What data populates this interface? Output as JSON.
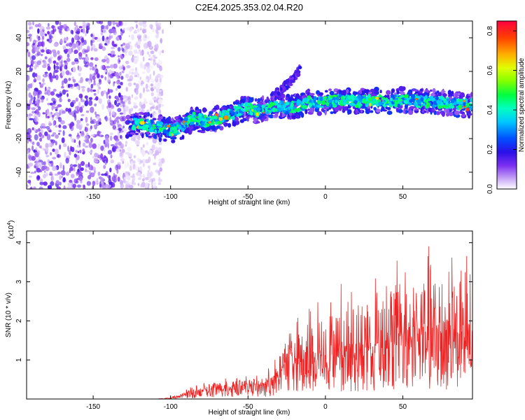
{
  "title": "C2E4.2025.353.02.04.R20",
  "chart_data": [
    {
      "id": "spectrogram",
      "type": "heatmap",
      "xlabel": "Height of straight line (km)",
      "ylabel": "Frequency (Hz)",
      "xlim": [
        -193,
        95
      ],
      "ylim": [
        -50,
        50
      ],
      "xticks": [
        -150,
        -100,
        -50,
        0,
        50
      ],
      "yticks": [
        -40,
        -20,
        0,
        20,
        40
      ],
      "grid": false,
      "trace": {
        "x": [
          -128,
          -120,
          -110,
          -100,
          -95,
          -90,
          -85,
          -80,
          -75,
          -70,
          -65,
          -60,
          -55,
          -50,
          -45,
          -40,
          -35,
          -30,
          -25,
          -20,
          -15,
          -10,
          -5,
          0,
          10,
          20,
          30,
          40,
          50,
          60,
          70,
          80,
          90,
          95
        ],
        "freq": [
          -12,
          -11,
          -13,
          -15,
          -14,
          -11,
          -8,
          -9,
          -10,
          -8,
          -7,
          -5,
          -3,
          -2,
          -4,
          -2,
          -1,
          0,
          -2,
          -1,
          0,
          2,
          1,
          2,
          3,
          2,
          3,
          2,
          3,
          2,
          2,
          1,
          0,
          0
        ]
      },
      "secondary_arc": {
        "x": [
          -35,
          -30,
          -25,
          -20,
          -16
        ],
        "freq": [
          4,
          8,
          12,
          16,
          22
        ]
      },
      "noise_region_x": [
        -193,
        -105
      ],
      "colorbar": {
        "label": "Normalized spectral amplitude",
        "range": [
          0.0,
          0.85
        ],
        "ticks": [
          0.0,
          0.2,
          0.4,
          0.6,
          0.8
        ],
        "tick_labels": [
          "0.0",
          "0.2",
          "0.4",
          "0.6",
          "0.8"
        ]
      }
    },
    {
      "id": "snr",
      "type": "line",
      "xlabel": "Height of straight line (km)",
      "ylabel": "SNR (10 * v/v)",
      "scale_label": "(x10",
      "scale_exponent": "4",
      "scale_close": ")",
      "xlim": [
        -193,
        95
      ],
      "ylim": [
        0,
        4.3
      ],
      "xticks": [
        -150,
        -100,
        -50,
        0,
        50
      ],
      "yticks": [
        1,
        2,
        3,
        4
      ],
      "color": "#ee2222",
      "series": [
        {
          "name": "SNR",
          "envelope_x": [
            -193,
            -110,
            -100,
            -95,
            -90,
            -80,
            -70,
            -60,
            -50,
            -45,
            -40,
            -35,
            -30,
            -25,
            -23,
            -20,
            -10,
            0,
            10,
            20,
            30,
            40,
            50,
            60,
            70,
            80,
            90,
            95
          ],
          "envelope_mean": [
            0.0,
            0.0,
            0.02,
            0.06,
            0.12,
            0.2,
            0.25,
            0.3,
            0.33,
            0.35,
            0.33,
            0.45,
            0.55,
            0.9,
            1.3,
            0.9,
            1.0,
            1.05,
            1.1,
            1.2,
            1.3,
            1.4,
            1.5,
            1.6,
            1.6,
            1.6,
            1.5,
            1.5
          ],
          "envelope_peak": [
            0.0,
            0.0,
            0.05,
            0.12,
            0.25,
            0.45,
            0.55,
            0.6,
            0.62,
            0.6,
            0.6,
            0.9,
            1.2,
            1.9,
            2.2,
            2.0,
            2.5,
            2.8,
            3.1,
            3.3,
            3.5,
            3.7,
            3.9,
            3.8,
            4.0,
            4.25,
            3.7,
            3.7
          ]
        }
      ]
    }
  ]
}
